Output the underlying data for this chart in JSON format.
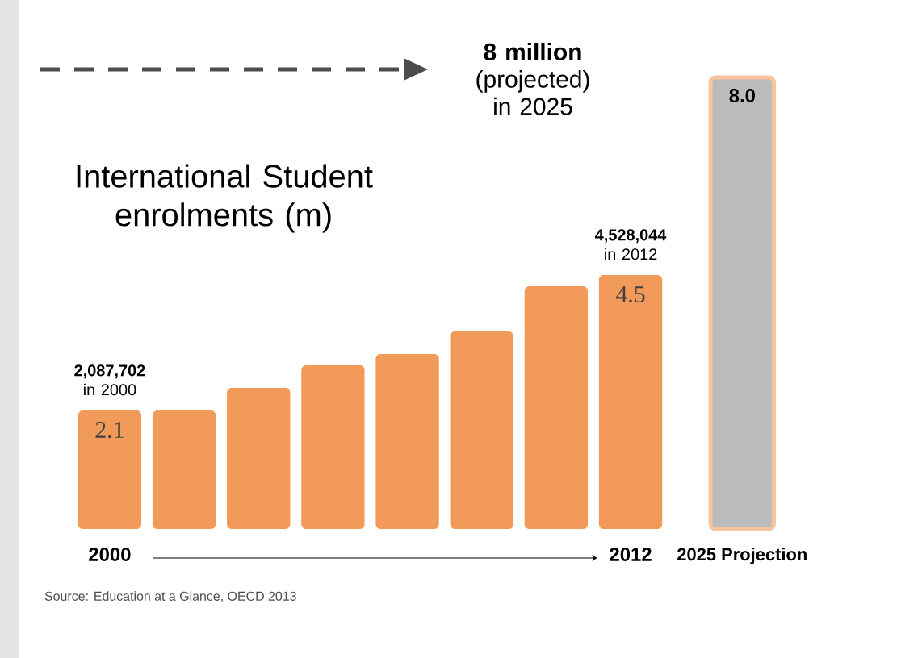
{
  "chart_data": {
    "type": "bar",
    "title": "International Student enrolments (m)",
    "categories": [
      "2000",
      null,
      null,
      null,
      null,
      null,
      null,
      "2012",
      "2025 Projection"
    ],
    "values": [
      2.1,
      2.1,
      2.5,
      2.9,
      3.1,
      3.5,
      4.3,
      4.5,
      8.0
    ],
    "colors": [
      "#f29a5a",
      "#f29a5a",
      "#f29a5a",
      "#f29a5a",
      "#f29a5a",
      "#f29a5a",
      "#f29a5a",
      "#f29a5a",
      "#bbbbbb"
    ],
    "value_labels": [
      "2.1",
      null,
      null,
      null,
      null,
      null,
      null,
      "4.5",
      "8.0"
    ],
    "annotations": [
      {
        "text": "**2,087,702** in 2000",
        "x": "2000",
        "y": 2.1
      },
      {
        "text": "**4,528,044** in 2012",
        "x": "2012",
        "y": 4.5
      },
      "**8 million** (projected) in 2025",
      "Source: Education at a Glance, OECD 2013"
    ]
  }
}
